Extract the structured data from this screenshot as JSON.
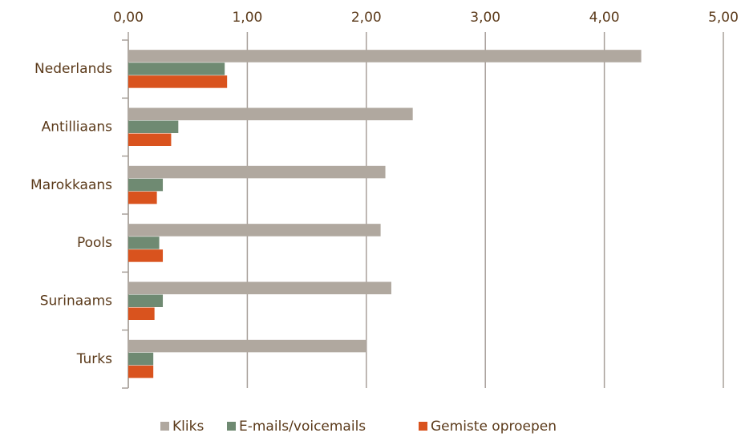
{
  "chart_data": {
    "type": "hbar",
    "categories": [
      "Nederlands",
      "Antilliaans",
      "Marokkaans",
      "Pools",
      "Surinaams",
      "Turks"
    ],
    "series": [
      {
        "name": "Kliks",
        "color": "#b0a89f",
        "values": [
          4.31,
          2.39,
          2.16,
          2.12,
          2.21,
          2.0
        ]
      },
      {
        "name": "E-mails/voicemails",
        "color": "#6f8a72",
        "values": [
          0.81,
          0.42,
          0.29,
          0.26,
          0.29,
          0.21
        ]
      },
      {
        "name": "Gemiste oproepen",
        "color": "#d9531e",
        "values": [
          0.83,
          0.36,
          0.24,
          0.29,
          0.22,
          0.21
        ]
      }
    ],
    "xlim": [
      0,
      5
    ],
    "xticks": [
      {
        "value": 0,
        "label": "0,00"
      },
      {
        "value": 1,
        "label": "1,00"
      },
      {
        "value": 2,
        "label": "2,00"
      },
      {
        "value": 3,
        "label": "3,00"
      },
      {
        "value": 4,
        "label": "4,00"
      },
      {
        "value": 5,
        "label": "5,00"
      }
    ],
    "grid": true
  }
}
